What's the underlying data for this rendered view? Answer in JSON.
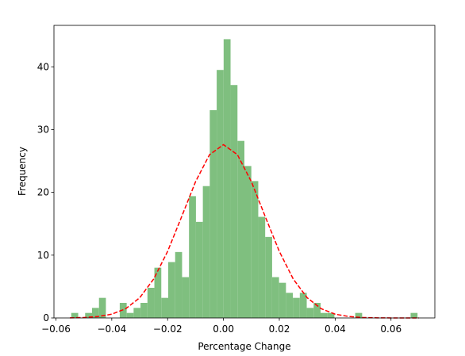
{
  "chart_data": {
    "type": "histogram",
    "x_label": "Percentage Change",
    "y_label": "Frequency",
    "color": "#7fbf7f",
    "bins": [
      -0.0545,
      -0.05202,
      -0.04954,
      -0.04706,
      -0.04458,
      -0.0421,
      -0.03962,
      -0.03714,
      -0.03466,
      -0.03218,
      -0.0297,
      -0.02722,
      -0.02474,
      -0.02226,
      -0.01978,
      -0.0173,
      -0.01482,
      -0.01234,
      -0.00986,
      -0.00738,
      -0.0049,
      -0.00242,
      6e-05,
      0.00254,
      0.00502,
      0.0075,
      0.00998,
      0.01246,
      0.01494,
      0.01742,
      0.0199,
      0.02238,
      0.02486,
      0.02734,
      0.02982,
      0.0323,
      0.03478,
      0.03726,
      0.03974,
      0.04222,
      0.0447,
      0.04718,
      0.04966,
      0.05214,
      0.05462,
      0.0571,
      0.05958,
      0.06206,
      0.06454,
      0.06702,
      0.0695
    ],
    "values": [
      0.8,
      0,
      0.8,
      1.6,
      3.2,
      0,
      0,
      2.4,
      0.8,
      1.6,
      2.4,
      4.8,
      8.0,
      3.2,
      8.9,
      10.5,
      6.5,
      19.4,
      15.3,
      21.0,
      33.1,
      39.5,
      44.4,
      37.1,
      28.2,
      24.2,
      21.8,
      16.1,
      12.9,
      6.5,
      5.6,
      4.0,
      3.2,
      4.0,
      1.6,
      2.4,
      0.8,
      0.8,
      0,
      0,
      0,
      0.8,
      0,
      0,
      0,
      0,
      0,
      0,
      0,
      0.8
    ],
    "curve": {
      "color": "#ff0000",
      "dashed": true,
      "x": [
        -0.055,
        -0.05,
        -0.045,
        -0.04,
        -0.035,
        -0.03,
        -0.025,
        -0.02,
        -0.015,
        -0.01,
        -0.005,
        0,
        0.005,
        0.01,
        0.015,
        0.02,
        0.025,
        0.03,
        0.035,
        0.04,
        0.045,
        0.05,
        0.055,
        0.06,
        0.065,
        0.07
      ],
      "values": [
        0.02,
        0.07,
        0.22,
        0.6,
        1.47,
        3.21,
        6.19,
        10.6,
        16.1,
        21.7,
        26.0,
        27.6,
        26.0,
        21.7,
        16.1,
        10.6,
        6.19,
        3.21,
        1.47,
        0.6,
        0.22,
        0.07,
        0.02,
        0.005,
        0.001,
        0.0002
      ]
    },
    "xlim": [
      -0.0607,
      0.0757
    ],
    "ylim": [
      0,
      46.6
    ],
    "xticks": [
      {
        "value": -0.06,
        "label": "−0.06"
      },
      {
        "value": -0.04,
        "label": "−0.04"
      },
      {
        "value": -0.02,
        "label": "−0.02"
      },
      {
        "value": 0,
        "label": "0.00"
      },
      {
        "value": 0.02,
        "label": "0.02"
      },
      {
        "value": 0.04,
        "label": "0.04"
      },
      {
        "value": 0.06,
        "label": "0.06"
      }
    ],
    "yticks": [
      0,
      10,
      20,
      30,
      40
    ]
  }
}
